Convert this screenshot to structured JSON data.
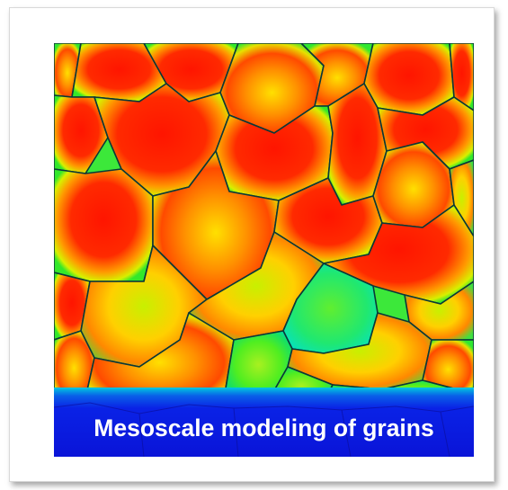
{
  "figure": {
    "caption": "Mesoscale modeling of grains",
    "colors": {
      "hot": "#ff1a00",
      "warm": "#ffb000",
      "mid": "#ffee00",
      "cool": "#33ee22",
      "cold": "#00e5c0",
      "boundary": "#0a3a3a",
      "substrate": "#0a1ee0"
    }
  }
}
